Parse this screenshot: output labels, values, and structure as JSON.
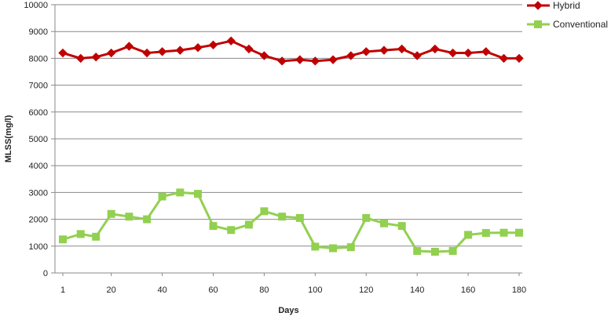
{
  "chart_data": {
    "type": "line",
    "title": "",
    "xlabel": "Days",
    "ylabel": "MLSS(mg/l)",
    "xlim": [
      1,
      180
    ],
    "ylim": [
      0,
      10000
    ],
    "x_ticks": [
      "1",
      "20",
      "40",
      "60",
      "80",
      "100",
      "120",
      "140",
      "160",
      "180"
    ],
    "y_ticks": [
      "0",
      "1000",
      "2000",
      "3000",
      "4000",
      "5000",
      "6000",
      "7000",
      "8000",
      "9000",
      "10000"
    ],
    "grid": "horizontal",
    "legend_position": "top-right",
    "x": [
      1,
      8,
      14,
      20,
      27,
      34,
      40,
      47,
      54,
      60,
      67,
      74,
      80,
      87,
      94,
      100,
      107,
      114,
      120,
      127,
      134,
      140,
      147,
      154,
      160,
      167,
      174,
      180
    ],
    "series": [
      {
        "name": "Hybrid",
        "color": "#c00000",
        "marker": "diamond",
        "values": [
          8200,
          8000,
          8050,
          8200,
          8450,
          8200,
          8250,
          8300,
          8400,
          8500,
          8650,
          8350,
          8100,
          7900,
          7950,
          7900,
          7950,
          8100,
          8250,
          8300,
          8350,
          8100,
          8350,
          8200,
          8200,
          8250,
          8000,
          8000
        ]
      },
      {
        "name": "Conventional",
        "color": "#92d050",
        "marker": "square",
        "values": [
          1250,
          1450,
          1350,
          2200,
          2100,
          2000,
          2850,
          3000,
          2950,
          1750,
          1600,
          1800,
          2300,
          2100,
          2050,
          980,
          920,
          960,
          2050,
          1850,
          1750,
          820,
          790,
          820,
          1420,
          1490,
          1500,
          1500
        ]
      }
    ]
  }
}
